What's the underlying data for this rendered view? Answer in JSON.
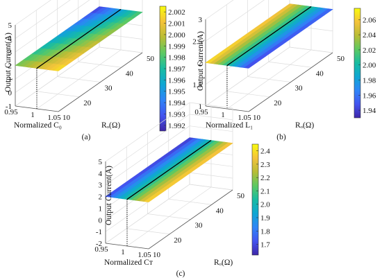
{
  "figure": {
    "background": "#ffffff",
    "colormap": [
      "#3e26a8",
      "#4354f0",
      "#2f85f7",
      "#0fa7d3",
      "#18bca2",
      "#5dc962",
      "#b8bd36",
      "#f4c33b",
      "#f9fb0e"
    ]
  },
  "chart_data": [
    {
      "id": "a",
      "type": "surface",
      "panel_label": "(a)",
      "xlabel": "Normalized C₀",
      "ylabel": "Rₒ(Ω)",
      "zlabel": "Output Current(A)",
      "x_ticks": [
        "0.95",
        "1",
        "1.05"
      ],
      "y_ticks": [
        "10",
        "20",
        "30",
        "40",
        "50"
      ],
      "z_ticks": [
        "-1",
        "0",
        "1",
        "2",
        "3",
        "4",
        "5"
      ],
      "xlim": [
        0.95,
        1.05
      ],
      "ylim": [
        10,
        50
      ],
      "zlim": [
        -1,
        5
      ],
      "clim": [
        1.9915,
        2.0025
      ],
      "colorbar_ticks": [
        "1.992",
        "1.993",
        "1.994",
        "1.995",
        "1.996",
        "1.997",
        "1.998",
        "1.999",
        "2.000",
        "2.001",
        "2.002"
      ],
      "corner_values": {
        "x_min_y_min": 1.999,
        "x_min_y_max": 1.992,
        "x_max_y_min": 2.002,
        "x_max_y_max": 1.998
      },
      "nominal_x": 1.0,
      "grid": true
    },
    {
      "id": "b",
      "type": "surface",
      "panel_label": "(b)",
      "xlabel": "Normalized L₁",
      "ylabel": "Rₒ(Ω)",
      "zlabel": "Output Current(A)",
      "x_ticks": [
        "0.95",
        "1",
        "1.05"
      ],
      "y_ticks": [
        "10",
        "20",
        "30",
        "40",
        "50"
      ],
      "z_ticks": [
        "1",
        "1.5",
        "2",
        "2.5",
        "3"
      ],
      "xlim": [
        0.95,
        1.05
      ],
      "ylim": [
        10,
        50
      ],
      "zlim": [
        1,
        3
      ],
      "clim": [
        1.93,
        2.075
      ],
      "colorbar_ticks": [
        "1.94",
        "1.96",
        "1.98",
        "2.00",
        "2.02",
        "2.04",
        "2.06"
      ],
      "corner_values": {
        "x_min_y_min": 2.07,
        "x_min_y_max": 2.06,
        "x_max_y_min": 1.94,
        "x_max_y_max": 1.95
      },
      "nominal_x": 1.0,
      "grid": true
    },
    {
      "id": "c",
      "type": "surface",
      "panel_label": "(c)",
      "xlabel": "Normalized Cᴛ",
      "ylabel": "Rₒ(Ω)",
      "zlabel": "Output Current(A)",
      "x_ticks": [
        "0.95",
        "1",
        "1.05"
      ],
      "y_ticks": [
        "10",
        "20",
        "30",
        "40",
        "50"
      ],
      "z_ticks": [
        "-2",
        "-1",
        "0",
        "1",
        "2",
        "3",
        "4",
        "5"
      ],
      "xlim": [
        0.95,
        1.05
      ],
      "ylim": [
        10,
        50
      ],
      "zlim": [
        -2,
        5
      ],
      "clim": [
        1.62,
        2.45
      ],
      "colorbar_ticks": [
        "1.7",
        "1.8",
        "1.9",
        "2.0",
        "2.1",
        "2.2",
        "2.3",
        "2.4"
      ],
      "corner_values": {
        "x_min_y_min": 1.7,
        "x_min_y_max": 1.65,
        "x_max_y_min": 2.4,
        "x_max_y_max": 2.38
      },
      "nominal_x": 1.0,
      "grid": true
    }
  ]
}
